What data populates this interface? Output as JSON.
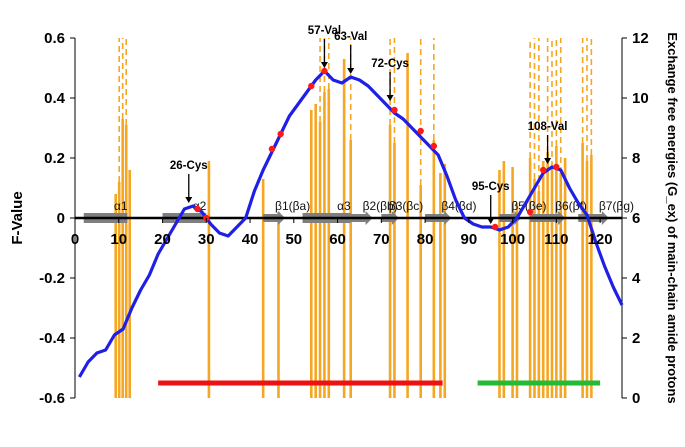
{
  "chart_data": {
    "type": "line",
    "title": "",
    "xlabel": "",
    "ylabel_left": "F-Value",
    "ylabel_right": "Exchange free energies (G_ex) of main-chain amide protons",
    "xlim": [
      0,
      125
    ],
    "ylim_left": [
      -0.6,
      0.6
    ],
    "ylim_right": [
      0,
      12
    ],
    "x_ticks": [
      0,
      10,
      20,
      30,
      40,
      50,
      60,
      70,
      80,
      90,
      100,
      110,
      120
    ],
    "y_left_ticks": [
      -0.6,
      -0.4,
      -0.2,
      0,
      0.2,
      0.4,
      0.6
    ],
    "y_right_ticks": [
      0,
      2,
      4,
      6,
      8,
      10,
      12
    ],
    "y_left_tick_labels": [
      "-0.6",
      "-0.4",
      "-0.2",
      "0",
      "0.2",
      "0.4",
      "0.6"
    ],
    "grid": false,
    "colors": {
      "line": "#1f1fe6",
      "points": "#ff1a1a",
      "bars": "#f5a623",
      "red_bar": "#ee1111",
      "green_bar": "#22bb33",
      "arrows": "#7f7f7f",
      "axis": "#000000"
    },
    "series": [
      {
        "name": "",
        "axis": "left",
        "kind": "line",
        "x": [
          1,
          3,
          5,
          7,
          9,
          11,
          13,
          15,
          17,
          19,
          21,
          23,
          25,
          27,
          29,
          31,
          33,
          35,
          37,
          39,
          41,
          43,
          45,
          47,
          49,
          51,
          53,
          55,
          57,
          59,
          61,
          63,
          65,
          67,
          69,
          71,
          73,
          75,
          77,
          79,
          81,
          83,
          85,
          87,
          89,
          91,
          93,
          95,
          97,
          99,
          101,
          103,
          105,
          107,
          109,
          111,
          113,
          115,
          117,
          119,
          121,
          123,
          125
        ],
        "y": [
          -0.53,
          -0.48,
          -0.45,
          -0.44,
          -0.39,
          -0.37,
          -0.3,
          -0.24,
          -0.19,
          -0.12,
          -0.07,
          -0.02,
          0.03,
          0.04,
          0.02,
          -0.02,
          -0.05,
          -0.06,
          -0.03,
          0.0,
          0.09,
          0.16,
          0.22,
          0.28,
          0.34,
          0.38,
          0.42,
          0.46,
          0.49,
          0.46,
          0.45,
          0.47,
          0.46,
          0.44,
          0.41,
          0.38,
          0.35,
          0.33,
          0.3,
          0.27,
          0.24,
          0.21,
          0.14,
          0.06,
          0.0,
          -0.02,
          -0.03,
          -0.03,
          -0.04,
          -0.03,
          0.0,
          0.05,
          0.1,
          0.15,
          0.17,
          0.16,
          0.1,
          0.05,
          0.01,
          -0.08,
          -0.16,
          -0.23,
          -0.29
        ]
      },
      {
        "name": "",
        "axis": "left",
        "kind": "points",
        "x": [
          28,
          30,
          45,
          47,
          54,
          57,
          73,
          79,
          82,
          96,
          104,
          107,
          110
        ],
        "y": [
          0.03,
          0.0,
          0.23,
          0.28,
          0.44,
          0.49,
          0.36,
          0.29,
          0.24,
          -0.03,
          0.02,
          0.16,
          0.17
        ]
      },
      {
        "name": "",
        "axis": "right",
        "kind": "bars",
        "x": [
          9.3,
          10.1,
          10.9,
          11.7,
          12.5,
          30.6,
          43.0,
          46.5,
          54.0,
          55.0,
          56.0,
          57.0,
          58.0,
          61.5,
          63.0,
          72.0,
          73.0,
          76.0,
          79.0,
          82.0,
          83.5,
          84.5,
          97.0,
          98.0,
          100.0,
          101.0,
          104.0,
          105.0,
          106.0,
          107.0,
          108.0,
          109.0,
          110.0,
          111.0,
          112.0,
          116.0,
          117.0,
          118.0
        ],
        "y": [
          6.8,
          7.2,
          9.3,
          9.1,
          7.6,
          7.9,
          7.3,
          6.2,
          9.6,
          9.8,
          9.2,
          10.2,
          10.3,
          11.3,
          8.6,
          9.1,
          8.5,
          11.5,
          7.1,
          8.6,
          7.5,
          7.8,
          7.6,
          7.9,
          7.7,
          6.5,
          8.0,
          7.3,
          6.9,
          7.9,
          8.2,
          7.7,
          8.4,
          7.5,
          8.0,
          8.5,
          7.9,
          8.1
        ]
      },
      {
        "name": "",
        "axis": "right",
        "kind": "dashed_bars",
        "x": [
          10.1,
          10.9,
          11.7,
          56.0,
          57.0,
          58.0,
          63.0,
          72.0,
          73.0,
          79.0,
          82.0,
          104.0,
          105.0,
          106.0,
          108.0,
          109.0,
          110.0,
          111.0,
          116.0,
          117.0,
          118.0
        ],
        "y_from": [
          7.2,
          9.3,
          9.1,
          9.2,
          10.2,
          10.3,
          8.6,
          9.1,
          8.5,
          7.1,
          8.6,
          8.0,
          7.3,
          6.9,
          8.2,
          7.7,
          8.4,
          7.5,
          8.5,
          7.9,
          8.1
        ],
        "y_to": [
          12,
          12,
          12,
          12,
          12,
          12,
          12,
          12,
          12,
          12,
          12,
          12,
          12,
          12,
          12,
          12,
          12,
          12,
          12,
          12,
          12
        ]
      }
    ],
    "secondary_structure": [
      {
        "type": "helix",
        "x0": 2,
        "x1": 12,
        "label": "α1"
      },
      {
        "type": "helix",
        "x0": 20,
        "x1": 30,
        "label": "α2"
      },
      {
        "type": "strand",
        "x0": 43,
        "x1": 48,
        "label": "β1(βa)"
      },
      {
        "type": "helix",
        "x0": 52,
        "x1": 63,
        "label": "α3"
      },
      {
        "type": "strand",
        "x0": 63,
        "x1": 68,
        "label": "β2(βb)"
      },
      {
        "type": "strand",
        "x0": 70,
        "x1": 74,
        "label": "β3(βc)"
      },
      {
        "type": "strand",
        "x0": 80,
        "x1": 86,
        "label": "β4(βd)"
      },
      {
        "type": "strand",
        "x0": 97,
        "x1": 102,
        "label": "β5(βe)"
      },
      {
        "type": "strand",
        "x0": 104,
        "x1": 112,
        "label": "β6(βf)"
      },
      {
        "type": "strand",
        "x0": 115,
        "x1": 122,
        "label": "β7(βg)"
      }
    ],
    "annotations": [
      {
        "label": "26-Cys",
        "x": 26,
        "y": 0.04
      },
      {
        "label": "57-Val",
        "x": 57,
        "y": 0.49
      },
      {
        "label": "63-Val",
        "x": 63,
        "y": 0.47
      },
      {
        "label": "72-Cys",
        "x": 72,
        "y": 0.38
      },
      {
        "label": "95-Cys",
        "x": 95,
        "y": -0.03
      },
      {
        "label": "108-Val",
        "x": 108,
        "y": 0.17
      }
    ],
    "range_bars": [
      {
        "x0": 19,
        "x1": 84,
        "y": -0.55,
        "color": "#ee1111"
      },
      {
        "x0": 92,
        "x1": 120,
        "y": -0.55,
        "color": "#22bb33"
      }
    ]
  }
}
